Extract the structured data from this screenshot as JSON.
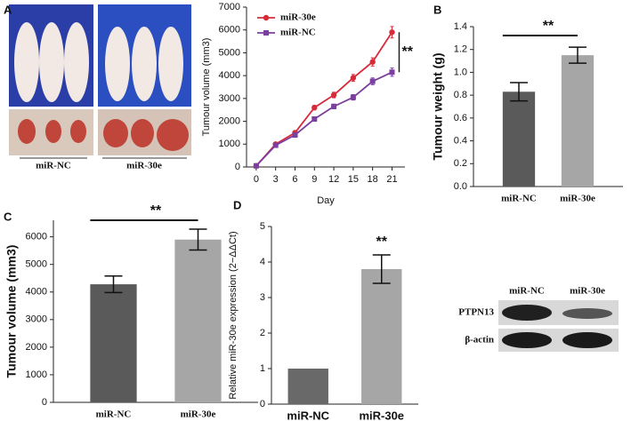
{
  "tumour_photo": {
    "panel": "A",
    "labels": [
      "miR-NC",
      "miR-30e"
    ]
  },
  "western_blot": {
    "columns": [
      "miR-NC",
      "miR-30e"
    ],
    "rows": [
      "PTPN13",
      "β-actin"
    ]
  },
  "chart_data": [
    {
      "type": "line",
      "xlabel": "Day",
      "ylabel": "Tumour volume (mm3)",
      "x": [
        0,
        3,
        6,
        9,
        12,
        15,
        18,
        21
      ],
      "xlim": [
        -1.5,
        23
      ],
      "xticks": [
        0,
        3,
        6,
        9,
        12,
        15,
        18,
        21
      ],
      "ylim": [
        0,
        7000
      ],
      "yticks": [
        0,
        1000,
        2000,
        3000,
        4000,
        5000,
        6000,
        7000
      ],
      "series": [
        {
          "name": "miR-30e",
          "color": "#d62b3a",
          "marker": "circle",
          "values": [
            50,
            1000,
            1500,
            2600,
            3150,
            3900,
            4600,
            5900
          ],
          "errors": [
            30,
            60,
            80,
            100,
            120,
            150,
            180,
            250
          ]
        },
        {
          "name": "miR-NC",
          "color": "#7b3fa0",
          "marker": "square",
          "values": [
            50,
            950,
            1400,
            2100,
            2650,
            3050,
            3750,
            4150
          ],
          "errors": [
            30,
            50,
            70,
            80,
            100,
            120,
            150,
            180
          ]
        }
      ],
      "annotation": "**"
    },
    {
      "type": "bar",
      "panel": "B",
      "ylabel": "Tumour weight (g)",
      "categories": [
        "miR-NC",
        "miR-30e"
      ],
      "values": [
        0.83,
        1.15
      ],
      "errors": [
        0.08,
        0.07
      ],
      "colors": [
        "#5a5a5a",
        "#a6a6a6"
      ],
      "ylim": [
        0,
        1.4
      ],
      "yticks": [
        {
          "value": 0,
          "label": "0.0"
        },
        0.2,
        0.4,
        0.6,
        0.8,
        {
          "value": 1,
          "label": "1.0"
        },
        1.2,
        1.4
      ],
      "annotation": "**"
    },
    {
      "type": "bar",
      "panel": "C",
      "ylabel": "Tumour volume (mm3)",
      "categories": [
        "miR-NC",
        "miR-30e"
      ],
      "values": [
        4280,
        5900
      ],
      "errors": [
        300,
        380
      ],
      "colors": [
        "#5a5a5a",
        "#a6a6a6"
      ],
      "ylim": [
        0,
        6600
      ],
      "yticks": [
        0,
        1000,
        2000,
        3000,
        4000,
        5000,
        6000
      ],
      "annotation": "**"
    },
    {
      "type": "bar",
      "panel": "D",
      "ylabel": "Relative miR-30e expression (2−ΔΔCt)",
      "categories": [
        "miR-NC",
        "miR-30e"
      ],
      "values": [
        1,
        3.8
      ],
      "errors": [
        0,
        0.4
      ],
      "colors": [
        "#696969",
        "#a6a6a6"
      ],
      "ylim": [
        0,
        5
      ],
      "yticks": [
        0,
        1,
        2,
        3,
        4,
        5
      ],
      "annotation": "**"
    }
  ]
}
